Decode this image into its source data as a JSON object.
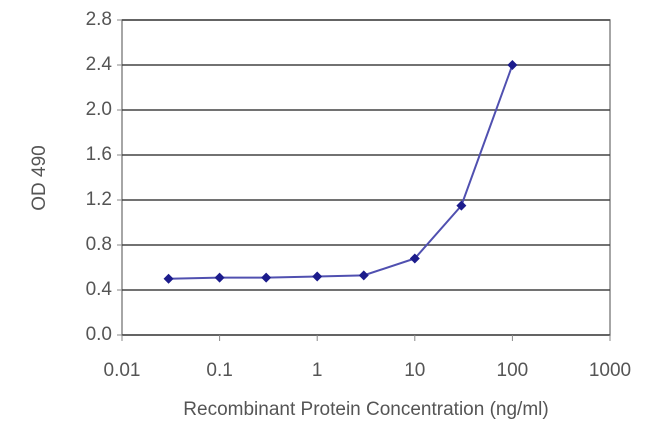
{
  "chart_data": {
    "type": "line",
    "xlabel": "Recombinant Protein Concentration (ng/ml)",
    "ylabel": "OD 490",
    "x": [
      0.03,
      0.1,
      0.3,
      1,
      3,
      10,
      30,
      100
    ],
    "series": [
      {
        "color": "#5050b0",
        "values": [
          0.5,
          0.51,
          0.51,
          0.52,
          0.53,
          0.68,
          1.15,
          2.4
        ]
      }
    ],
    "xscale": "log",
    "xlim": [
      0.01,
      1000
    ],
    "xticks": [
      0.01,
      0.1,
      1,
      10,
      100,
      1000
    ],
    "ylim": [
      0,
      2.8
    ],
    "yticks": [
      {
        "value": 0,
        "label": "0.0"
      },
      0.4,
      0.8,
      1.2,
      1.6,
      {
        "value": 2,
        "label": "2.0"
      },
      2.4,
      2.8
    ],
    "grid": true
  }
}
